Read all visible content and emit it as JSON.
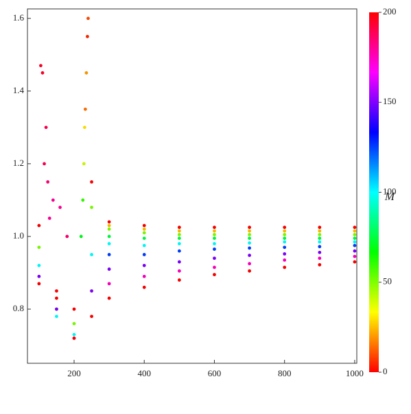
{
  "chart_data": {
    "type": "scatter",
    "xlim": [
      67,
      1006
    ],
    "ylim": [
      0.651,
      1.626
    ],
    "xticks": [
      200,
      400,
      600,
      800,
      1000
    ],
    "yticks": [
      0.8,
      {
        "value": 1,
        "label": "1.0"
      },
      1.2,
      1.4,
      1.6
    ],
    "colorbar_label": "M",
    "clim": [
      0,
      200
    ],
    "cticks": [
      0,
      50,
      100,
      150,
      200
    ],
    "x": [
      300,
      300,
      300,
      300,
      300,
      300,
      300,
      300,
      300,
      400,
      400,
      400,
      400,
      400,
      400,
      400,
      400,
      400,
      500,
      500,
      500,
      500,
      500,
      500,
      500,
      500,
      500,
      600,
      600,
      600,
      600,
      600,
      600,
      600,
      600,
      600,
      700,
      700,
      700,
      700,
      700,
      700,
      700,
      700,
      700,
      800,
      800,
      800,
      800,
      800,
      800,
      800,
      800,
      800,
      900,
      900,
      900,
      900,
      900,
      900,
      900,
      900,
      900,
      1000,
      1000,
      1000,
      1000,
      1000,
      1000,
      1000,
      1000,
      1000,
      250,
      250,
      250,
      250,
      250,
      200,
      200,
      200,
      200,
      200,
      150,
      150,
      150,
      150,
      150,
      100,
      100,
      100,
      100,
      100,
      240,
      238,
      235,
      232,
      230,
      228,
      225,
      220,
      105,
      110,
      120,
      115,
      125,
      140,
      130,
      160,
      180
    ],
    "values": [
      1.04,
      1.03,
      1.02,
      1.0,
      0.98,
      0.95,
      0.91,
      0.87,
      0.83,
      1.03,
      1.02,
      1.01,
      0.995,
      0.975,
      0.95,
      0.92,
      0.89,
      0.86,
      1.025,
      1.015,
      1.005,
      0.995,
      0.98,
      0.96,
      0.93,
      0.905,
      0.88,
      1.025,
      1.015,
      1.005,
      0.995,
      0.98,
      0.965,
      0.94,
      0.915,
      0.895,
      1.025,
      1.015,
      1.005,
      0.995,
      0.982,
      0.968,
      0.948,
      0.925,
      0.905,
      1.025,
      1.015,
      1.005,
      0.995,
      0.985,
      0.97,
      0.952,
      0.935,
      0.915,
      1.025,
      1.015,
      1.005,
      0.995,
      0.985,
      0.972,
      0.956,
      0.94,
      0.922,
      1.025,
      1.015,
      1.005,
      0.995,
      0.985,
      0.975,
      0.96,
      0.945,
      0.93,
      1.15,
      1.08,
      0.95,
      0.85,
      0.78,
      0.8,
      0.76,
      0.73,
      0.72,
      0.72,
      0.85,
      0.8,
      0.78,
      0.8,
      0.83,
      1.03,
      0.97,
      0.92,
      0.89,
      0.87,
      1.6,
      1.55,
      1.45,
      1.35,
      1.3,
      1.2,
      1.1,
      1.0,
      1.47,
      1.45,
      1.3,
      1.2,
      1.15,
      1.1,
      1.05,
      1.08,
      1.0
    ],
    "M": [
      0,
      25,
      50,
      75,
      100,
      125,
      150,
      175,
      200,
      0,
      25,
      50,
      75,
      100,
      125,
      150,
      175,
      200,
      0,
      25,
      50,
      75,
      100,
      125,
      150,
      175,
      200,
      0,
      25,
      50,
      75,
      100,
      125,
      150,
      175,
      200,
      0,
      25,
      50,
      75,
      100,
      125,
      150,
      175,
      200,
      0,
      25,
      50,
      75,
      100,
      125,
      150,
      175,
      200,
      0,
      25,
      50,
      75,
      100,
      125,
      150,
      175,
      200,
      0,
      25,
      50,
      75,
      100,
      125,
      150,
      175,
      200,
      0,
      50,
      100,
      150,
      200,
      0,
      50,
      100,
      150,
      200,
      0,
      50,
      100,
      150,
      200,
      0,
      50,
      100,
      150,
      200,
      10,
      5,
      20,
      15,
      30,
      40,
      60,
      70,
      195,
      195,
      190,
      190,
      185,
      180,
      180,
      180,
      185
    ]
  }
}
